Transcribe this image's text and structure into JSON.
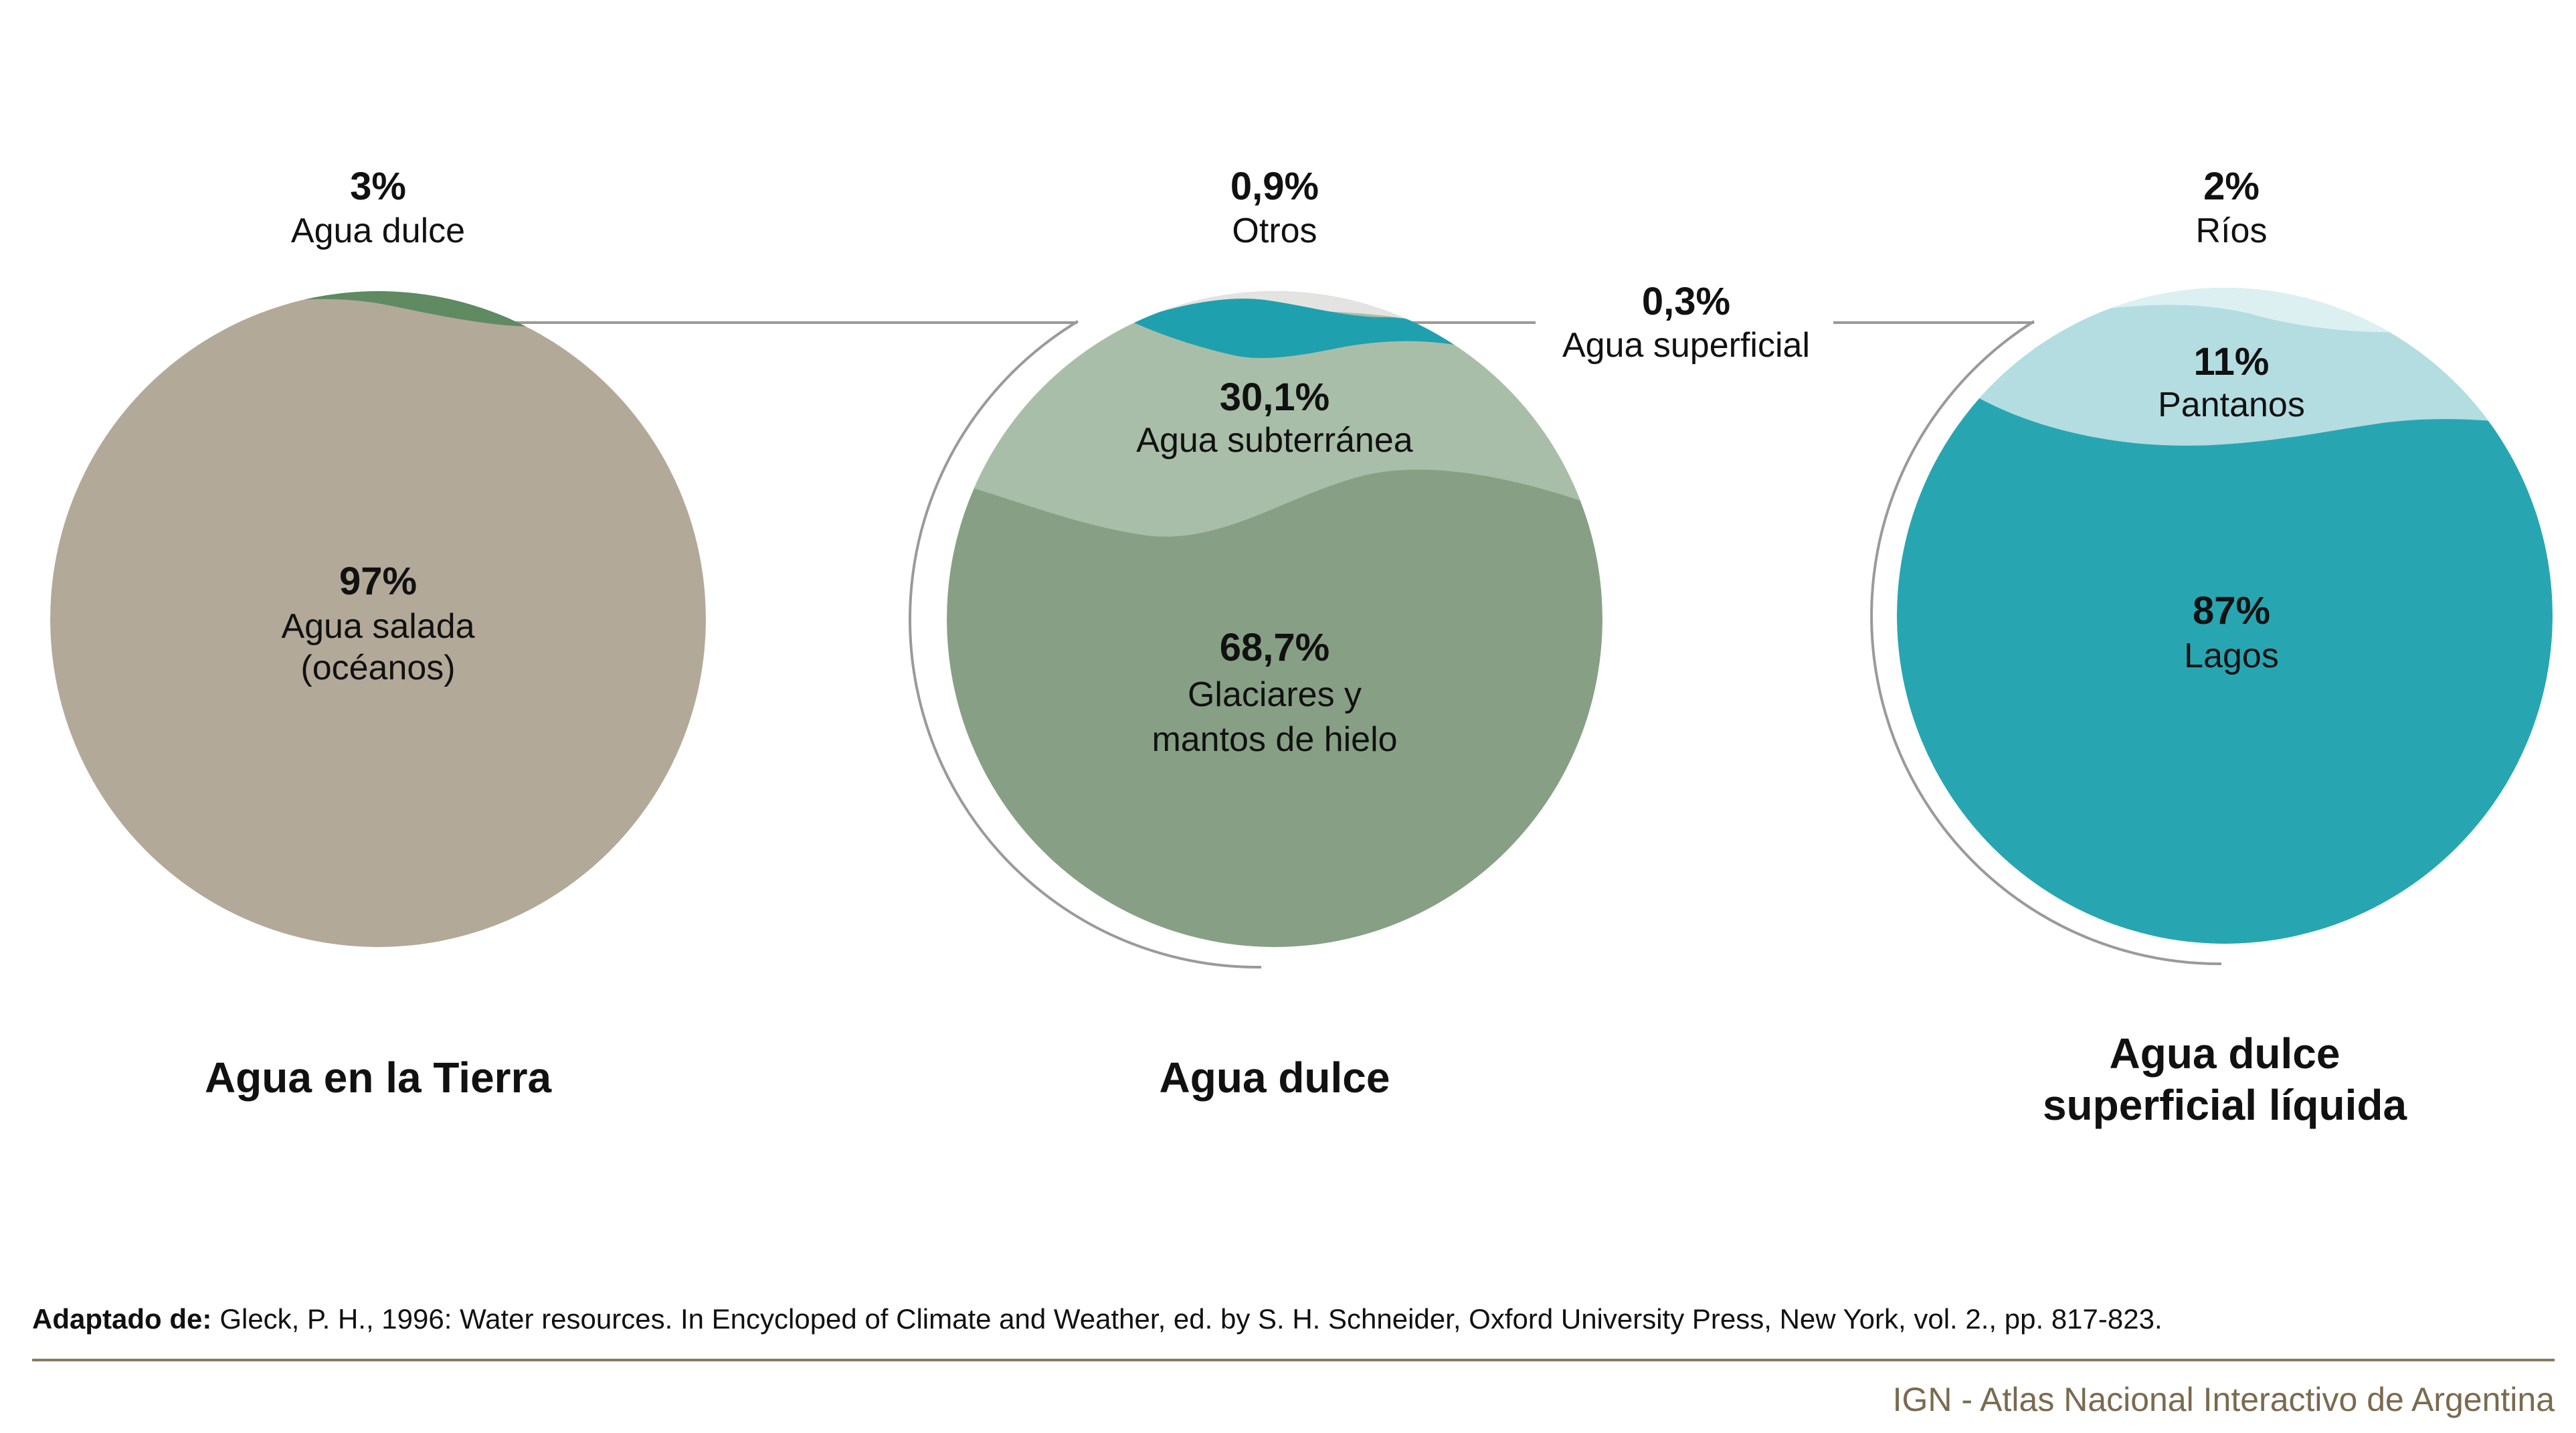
{
  "chart_data": [
    {
      "type": "pie",
      "title": "Agua en la Tierra",
      "slices": [
        {
          "value": "97%",
          "label_lines": [
            "Agua salada",
            "(océanos)"
          ],
          "color": "#b3a999"
        },
        {
          "value": "3%",
          "label_lines": [
            "Agua dulce"
          ],
          "color": "#5f8a62"
        }
      ]
    },
    {
      "type": "pie",
      "title": "Agua dulce",
      "slices": [
        {
          "value": "68,7%",
          "label_lines": [
            "Glaciares y",
            "mantos de hielo"
          ],
          "color": "#87a085"
        },
        {
          "value": "30,1%",
          "label_lines": [
            "Agua subterránea"
          ],
          "color": "#a9bea8"
        },
        {
          "value": "0,3%",
          "label_lines": [
            "Agua superficial"
          ],
          "color": "#1fa0ae"
        },
        {
          "value": "0,9%",
          "label_lines": [
            "Otros"
          ],
          "color": "#e3e3e1"
        }
      ]
    },
    {
      "type": "pie",
      "title": "Agua dulce superficial líquida",
      "title_lines": [
        "Agua dulce",
        "superficial líquida"
      ],
      "slices": [
        {
          "value": "87%",
          "label_lines": [
            "Lagos"
          ],
          "color": "#27a6b2"
        },
        {
          "value": "11%",
          "label_lines": [
            "Pantanos"
          ],
          "color": "#b3dde1"
        },
        {
          "value": "2%",
          "label_lines": [
            "Ríos"
          ],
          "color": "#dcf0f2"
        }
      ]
    }
  ],
  "source": {
    "prefix": "Adaptado de:",
    "text": "Gleck, P. H., 1996: Water resources. In Encycloped of Climate and Weather, ed. by S. H. Schneider, Oxford University Press, New York, vol. 2., pp. 817-823."
  },
  "footer": "IGN - Atlas Nacional Interactivo de Argentina",
  "colors": {
    "connector": "#9a9a9a",
    "rule": "#8a7a60"
  }
}
